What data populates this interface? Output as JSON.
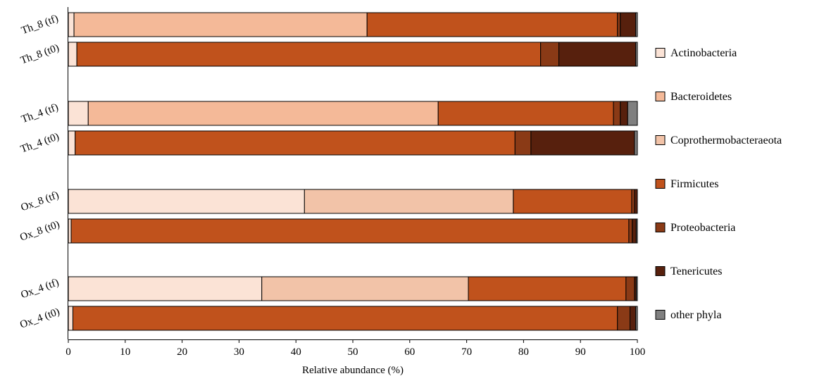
{
  "chart_data": {
    "type": "bar",
    "orientation": "horizontal",
    "stacked": true,
    "categories": [
      "Th_8 (tf)",
      "Th_8 (t0)",
      "Th_4 (tf)",
      "Th_4 (t0)",
      "Ox_8 (tf)",
      "Ox_8 (t0)",
      "Ox_4 (tf)",
      "Ox_4 (t0)"
    ],
    "series": [
      {
        "name": "Actinobacteria",
        "color": "#fbe3d6",
        "values": [
          1.0,
          1.5,
          3.5,
          1.2,
          41.5,
          0.5,
          34.0,
          0.8
        ]
      },
      {
        "name": "Bacteroidetes",
        "color": "#f4b998",
        "values": [
          51.5,
          0.0,
          61.5,
          0.0,
          0.0,
          0.0,
          0.0,
          0.0
        ]
      },
      {
        "name": "Coprothermobacteraeota",
        "color": "#f2c3a8",
        "values": [
          0.0,
          0.0,
          0.0,
          0.0,
          36.7,
          0.0,
          36.3,
          0.0
        ]
      },
      {
        "name": "Firmicutes",
        "color": "#c0521c",
        "values": [
          44.0,
          81.5,
          30.8,
          77.3,
          20.8,
          98.0,
          27.7,
          95.7
        ]
      },
      {
        "name": "Proteobacteria",
        "color": "#8a3a16",
        "values": [
          0.5,
          3.2,
          1.2,
          2.8,
          0.5,
          0.6,
          1.5,
          2.2
        ]
      },
      {
        "name": "Tenericutes",
        "color": "#57200d",
        "values": [
          2.7,
          13.5,
          1.3,
          18.2,
          0.5,
          0.7,
          0.3,
          1.0
        ]
      },
      {
        "name": "other phyla",
        "color": "#808080",
        "values": [
          0.3,
          0.3,
          1.7,
          0.5,
          0.0,
          0.2,
          0.2,
          0.3
        ]
      }
    ],
    "xlabel": "Relative abundance (%)",
    "ylabel": "",
    "title": "",
    "xlim": [
      0,
      100
    ],
    "xticks": [
      0,
      10,
      20,
      30,
      40,
      50,
      60,
      70,
      80,
      90,
      100
    ],
    "grid": false,
    "legend_position": "right"
  }
}
